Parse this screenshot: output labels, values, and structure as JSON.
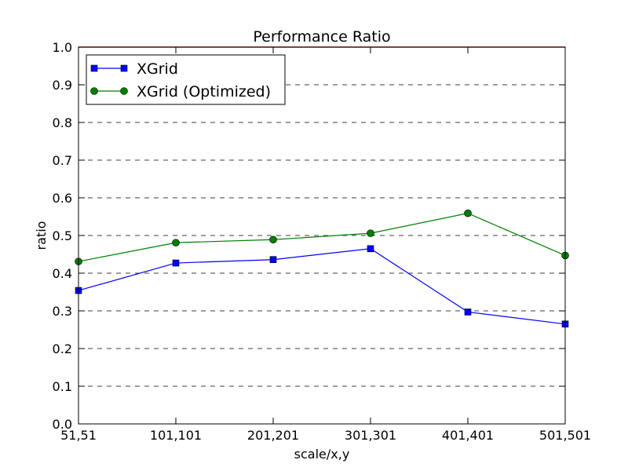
{
  "chart_data": {
    "type": "line",
    "title": "Performance Ratio",
    "xlabel": "scale/x,y",
    "ylabel": "ratio",
    "categories": [
      "51,51",
      "101,101",
      "201,201",
      "301,301",
      "401,401",
      "501,501"
    ],
    "ylim": [
      0,
      1.0
    ],
    "yticks": [
      "0.0",
      "0.1",
      "0.2",
      "0.3",
      "0.4",
      "0.5",
      "0.6",
      "0.7",
      "0.8",
      "0.9",
      "1.0"
    ],
    "grid": "horizontal dashed",
    "legend_position": "top-left",
    "reference_line": {
      "y": 1.0,
      "color": "#cc2200"
    },
    "series": [
      {
        "name": "XGrid",
        "color": "#0000ff",
        "marker": "square",
        "values": [
          0.354,
          0.427,
          0.436,
          0.465,
          0.297,
          0.265
        ]
      },
      {
        "name": "XGrid (Optimized)",
        "color": "#007f00",
        "marker": "circle",
        "values": [
          0.431,
          0.481,
          0.489,
          0.506,
          0.559,
          0.447
        ]
      }
    ]
  }
}
